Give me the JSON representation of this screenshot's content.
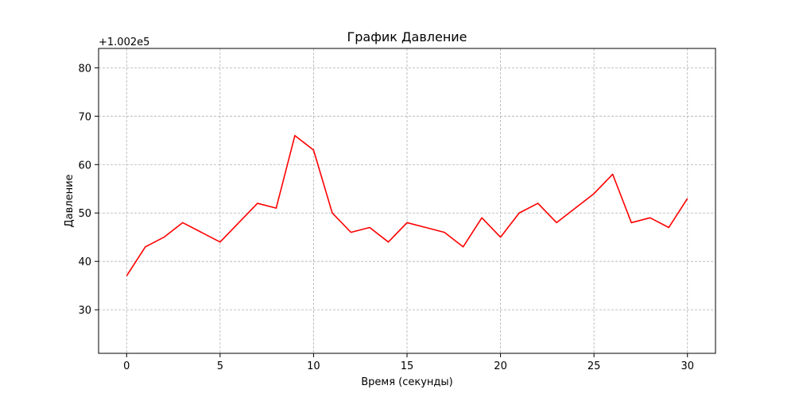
{
  "chart_data": {
    "type": "line",
    "title": "График Давление",
    "xlabel": "Время (секунды)",
    "ylabel": "Давление",
    "y_offset_label": "+1.002e5",
    "xlim": [
      0,
      30
    ],
    "ylim": [
      21,
      84
    ],
    "xticks": [
      0,
      5,
      10,
      15,
      20,
      25,
      30
    ],
    "yticks": [
      30,
      40,
      50,
      60,
      70,
      80
    ],
    "grid": true,
    "series": [
      {
        "color": "#ff0000",
        "x": [
          0,
          1,
          2,
          3,
          4,
          5,
          6,
          7,
          8,
          9,
          10,
          11,
          12,
          13,
          14,
          15,
          16,
          17,
          18,
          19,
          20,
          21,
          22,
          23,
          24,
          25,
          26,
          27,
          28,
          29,
          30
        ],
        "y": [
          37,
          43,
          45,
          48,
          46,
          44,
          48,
          52,
          51,
          66,
          63,
          50,
          46,
          47,
          44,
          48,
          47,
          46,
          43,
          49,
          45,
          50,
          52,
          48,
          51,
          54,
          58,
          48,
          49,
          47,
          53
        ]
      }
    ]
  }
}
